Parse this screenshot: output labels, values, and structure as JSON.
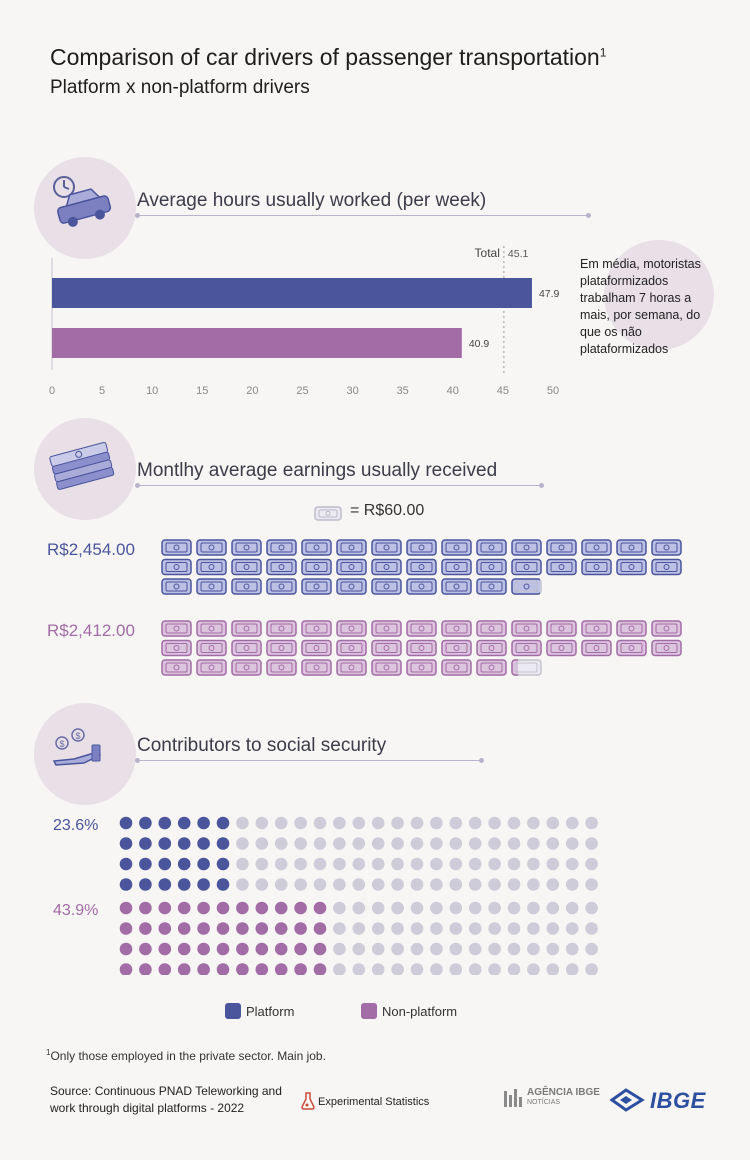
{
  "header": {
    "title": "Comparison of car drivers of passenger transportation",
    "title_sup": "1",
    "subtitle": "Platform x non-platform drivers"
  },
  "colors": {
    "platform": "#4b559c",
    "non_platform": "#a26ca6",
    "empty_dot": "#cfccd9",
    "note_circle": "#e8dfe7",
    "background": "#f7f6f4"
  },
  "sections": {
    "hours": {
      "title": "Average hours usually worked (per week)",
      "icon": "clock-car-icon"
    },
    "earnings": {
      "title": "Montlhy average earnings usually received",
      "icon": "money-stack-icon"
    },
    "social": {
      "title": "Contributors to social security",
      "icon": "hand-coins-icon"
    }
  },
  "chart_data": [
    {
      "type": "bar",
      "orientation": "horizontal",
      "title": "Average hours usually worked (per week)",
      "categories": [
        "Platform",
        "Non-platform"
      ],
      "values": [
        47.9,
        40.9
      ],
      "value_labels": [
        "47.9",
        "40.9"
      ],
      "reference_line": {
        "label": "Total",
        "value": 45.1,
        "value_label": "45.1"
      },
      "xlim": [
        0,
        50
      ],
      "x_ticks": [
        "0",
        "5",
        "10",
        "15",
        "20",
        "25",
        "30",
        "35",
        "40",
        "45",
        "50"
      ],
      "annotation": "Em média, motoristas plataformizados trabalham 7 horas a mais, por semana, do que os não plataformizados"
    },
    {
      "type": "pictogram",
      "title": "Montlhy average earnings usually received",
      "unit_label": "= R$60.00",
      "unit_value": 60,
      "categories": [
        "Platform",
        "Non-platform"
      ],
      "values": [
        2454,
        2412
      ],
      "value_labels": [
        "R$2,454.00",
        "R$2,412.00"
      ]
    },
    {
      "type": "dot_matrix",
      "title": "Contributors to social security",
      "categories": [
        "Platform",
        "Non-platform"
      ],
      "values": [
        23.6,
        43.9
      ],
      "value_labels": [
        "23.6%",
        "43.9%"
      ],
      "total_dots": 100
    }
  ],
  "legend": {
    "platform": "Platform",
    "non_platform": "Non-platform"
  },
  "footer": {
    "footnote_sup": "1",
    "footnote": "Only those employed in the private sector. Main job.",
    "source": "Source: Continuous PNAD Teleworking and work through digital platforms - 2022",
    "experimental": "Experimental Statistics",
    "agencia": "AGÊNCIA IBGE",
    "agencia_sub": "NOTÍCIAS",
    "ibge": "IBGE"
  }
}
